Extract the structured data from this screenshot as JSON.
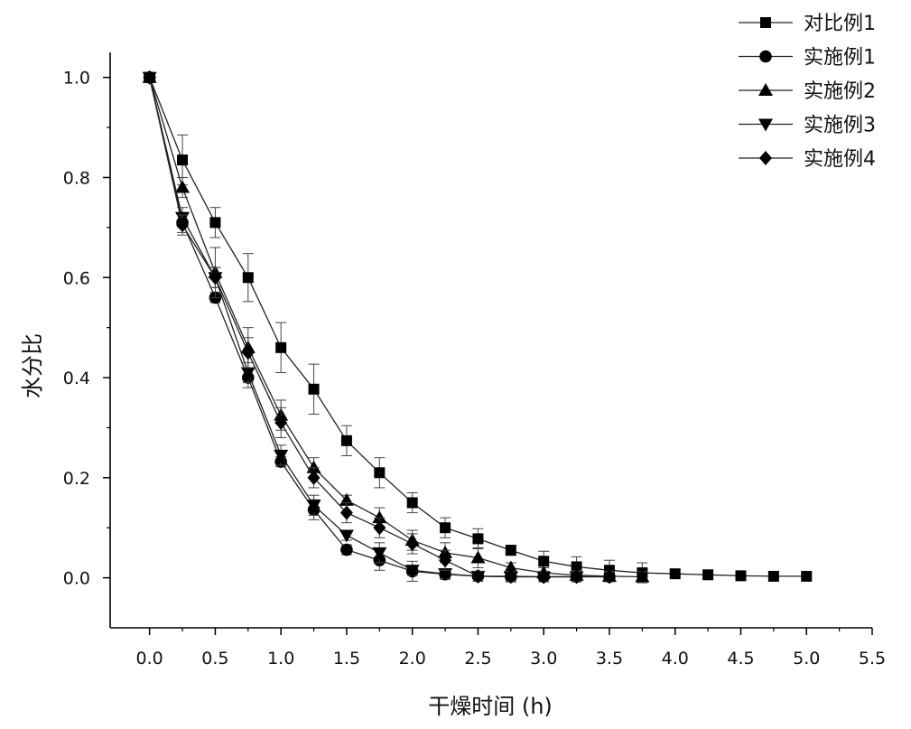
{
  "chart_data": {
    "type": "line",
    "xlabel": "干燥时间 (h)",
    "ylabel": "水分比",
    "xlim": [
      -0.3,
      5.5
    ],
    "ylim": [
      -0.1,
      1.05
    ],
    "xticks": [
      "0.0",
      "0.5",
      "1.0",
      "1.5",
      "2.0",
      "2.5",
      "3.0",
      "3.5",
      "4.0",
      "4.5",
      "5.0",
      "5.5"
    ],
    "yticks": [
      "0.0",
      "0.2",
      "0.4",
      "0.6",
      "0.8",
      "1.0"
    ],
    "grid": false,
    "legend_position": "top-right",
    "series": [
      {
        "name": "对比例1",
        "marker": "square",
        "x": [
          0,
          0.25,
          0.5,
          0.75,
          1.0,
          1.25,
          1.5,
          1.75,
          2.0,
          2.25,
          2.5,
          2.75,
          3.0,
          3.25,
          3.5,
          3.75,
          4.0,
          4.25,
          4.5,
          4.75,
          5.0
        ],
        "y": [
          1.0,
          0.835,
          0.71,
          0.6,
          0.46,
          0.377,
          0.274,
          0.21,
          0.15,
          0.1,
          0.078,
          0.055,
          0.033,
          0.022,
          0.015,
          0.01,
          0.008,
          0.006,
          0.004,
          0.003,
          0.003
        ],
        "err": [
          0,
          0.05,
          0.03,
          0.048,
          0.05,
          0.05,
          0.03,
          0.03,
          0.02,
          0.02,
          0.02,
          0.01,
          0.02,
          0.02,
          0.02,
          0.02,
          0,
          0,
          0,
          0,
          0
        ]
      },
      {
        "name": "实施例1",
        "marker": "circle",
        "x": [
          0,
          0.25,
          0.5,
          0.75,
          1.0,
          1.25,
          1.5,
          1.75,
          2.0,
          2.25,
          2.5,
          2.75,
          3.0,
          3.25,
          3.5
        ],
        "y": [
          1.0,
          0.71,
          0.56,
          0.4,
          0.232,
          0.136,
          0.056,
          0.035,
          0.013,
          0.007,
          0.003,
          0.002,
          0.002,
          0.002,
          0.002
        ],
        "err": [
          0,
          0.02,
          0.01,
          0.02,
          0.01,
          0.02,
          0.01,
          0.02,
          0.02,
          0.01,
          0.01,
          0.01,
          0.01,
          0.01,
          0.01
        ]
      },
      {
        "name": "实施例2",
        "marker": "triangle-up",
        "x": [
          0,
          0.25,
          0.5,
          0.75,
          1.0,
          1.25,
          1.5,
          1.75,
          2.0,
          2.25,
          2.5,
          2.75,
          3.0,
          3.25,
          3.5,
          3.75
        ],
        "y": [
          1.0,
          0.78,
          0.61,
          0.46,
          0.325,
          0.22,
          0.155,
          0.12,
          0.075,
          0.05,
          0.04,
          0.02,
          0.01,
          0.005,
          0.003,
          0.002
        ],
        "err": [
          0,
          0.02,
          0.05,
          0.04,
          0.03,
          0.02,
          0.01,
          0.02,
          0.02,
          0.02,
          0.02,
          0.01,
          0.01,
          0.01,
          0.01,
          0.01
        ]
      },
      {
        "name": "实施例3",
        "marker": "triangle-down",
        "x": [
          0,
          0.25,
          0.5,
          0.75,
          1.0,
          1.25,
          1.5,
          1.75,
          2.0,
          2.25,
          2.5,
          2.75,
          3.0,
          3.25
        ],
        "y": [
          1.0,
          0.72,
          0.6,
          0.41,
          0.245,
          0.145,
          0.085,
          0.05,
          0.015,
          0.008,
          0.003,
          0.002,
          0.002,
          0.002
        ],
        "err": [
          0,
          0.02,
          0.02,
          0.02,
          0.02,
          0.02,
          0.01,
          0.02,
          0.01,
          0.01,
          0.01,
          0.01,
          0.01,
          0.01
        ]
      },
      {
        "name": "实施例4",
        "marker": "diamond",
        "x": [
          0,
          0.25,
          0.5,
          0.75,
          1.0,
          1.25,
          1.5,
          1.75,
          2.0,
          2.25,
          2.5,
          2.75,
          3.0,
          3.25,
          3.5
        ],
        "y": [
          1.0,
          0.705,
          0.6,
          0.45,
          0.31,
          0.2,
          0.13,
          0.1,
          0.068,
          0.035,
          0.003,
          0.003,
          0.002,
          0.002,
          0.002
        ],
        "err": [
          0,
          0.02,
          0.02,
          0.03,
          0.03,
          0.02,
          0.02,
          0.02,
          0.02,
          0.02,
          0.01,
          0.01,
          0.01,
          0.01,
          0.01
        ]
      }
    ]
  }
}
